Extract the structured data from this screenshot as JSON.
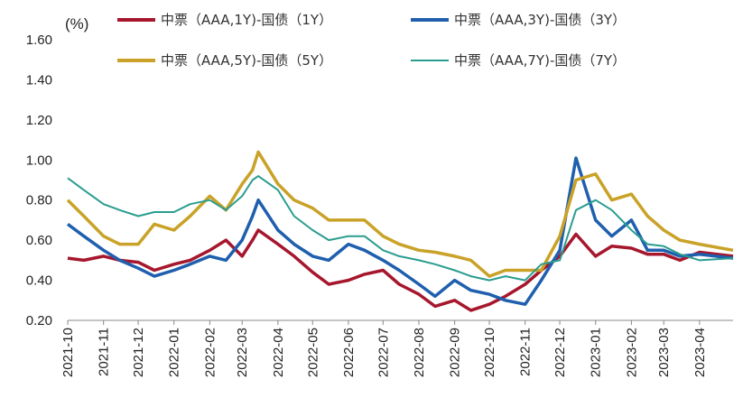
{
  "chart_data": {
    "type": "line",
    "unit_label": "(%)",
    "title": "",
    "xlabel": "",
    "ylabel": "",
    "ylim": [
      0.2,
      1.6
    ],
    "yticks": [
      "0.20",
      "0.40",
      "0.60",
      "0.80",
      "1.00",
      "1.20",
      "1.40",
      "1.60"
    ],
    "xlim": [
      "2021-10",
      "2023-04-30"
    ],
    "xticks": [
      "2021-10",
      "2021-11",
      "2021-12",
      "2022-01",
      "2022-02",
      "2022-03",
      "2022-04",
      "2022-05",
      "2022-06",
      "2022-07",
      "2022-08",
      "2022-09",
      "2022-10",
      "2022-11",
      "2022-12",
      "2023-01",
      "2023-02",
      "2023-03",
      "2023-04"
    ],
    "legend_position": "top",
    "grid": false,
    "series": [
      {
        "name": "中票（AAA,1Y)-国债（1Y）",
        "color": "#A6172D",
        "points": [
          [
            "2021-10-01",
            0.51
          ],
          [
            "2021-10-15",
            0.5
          ],
          [
            "2021-11-01",
            0.52
          ],
          [
            "2021-11-15",
            0.5
          ],
          [
            "2021-12-01",
            0.49
          ],
          [
            "2021-12-15",
            0.45
          ],
          [
            "2022-01-01",
            0.48
          ],
          [
            "2022-01-15",
            0.5
          ],
          [
            "2022-02-01",
            0.55
          ],
          [
            "2022-02-15",
            0.6
          ],
          [
            "2022-03-01",
            0.52
          ],
          [
            "2022-03-10",
            0.6
          ],
          [
            "2022-03-15",
            0.65
          ],
          [
            "2022-04-01",
            0.58
          ],
          [
            "2022-04-15",
            0.52
          ],
          [
            "2022-05-01",
            0.44
          ],
          [
            "2022-05-15",
            0.38
          ],
          [
            "2022-06-01",
            0.4
          ],
          [
            "2022-06-15",
            0.43
          ],
          [
            "2022-07-01",
            0.45
          ],
          [
            "2022-07-15",
            0.38
          ],
          [
            "2022-08-01",
            0.33
          ],
          [
            "2022-08-15",
            0.27
          ],
          [
            "2022-09-01",
            0.3
          ],
          [
            "2022-09-15",
            0.25
          ],
          [
            "2022-10-01",
            0.28
          ],
          [
            "2022-10-15",
            0.32
          ],
          [
            "2022-11-01",
            0.38
          ],
          [
            "2022-11-15",
            0.45
          ],
          [
            "2022-12-01",
            0.52
          ],
          [
            "2022-12-15",
            0.63
          ],
          [
            "2023-01-01",
            0.52
          ],
          [
            "2023-01-15",
            0.57
          ],
          [
            "2023-02-01",
            0.56
          ],
          [
            "2023-02-15",
            0.53
          ],
          [
            "2023-03-01",
            0.53
          ],
          [
            "2023-03-15",
            0.5
          ],
          [
            "2023-04-01",
            0.54
          ],
          [
            "2023-04-30",
            0.52
          ]
        ]
      },
      {
        "name": "中票（AAA,3Y)-国债（3Y）",
        "color": "#1F5FAE",
        "points": [
          [
            "2021-10-01",
            0.68
          ],
          [
            "2021-10-15",
            0.62
          ],
          [
            "2021-11-01",
            0.55
          ],
          [
            "2021-11-15",
            0.5
          ],
          [
            "2021-12-01",
            0.46
          ],
          [
            "2021-12-15",
            0.42
          ],
          [
            "2022-01-01",
            0.45
          ],
          [
            "2022-01-15",
            0.48
          ],
          [
            "2022-02-01",
            0.52
          ],
          [
            "2022-02-15",
            0.5
          ],
          [
            "2022-03-01",
            0.6
          ],
          [
            "2022-03-10",
            0.72
          ],
          [
            "2022-03-15",
            0.8
          ],
          [
            "2022-04-01",
            0.65
          ],
          [
            "2022-04-15",
            0.58
          ],
          [
            "2022-05-01",
            0.52
          ],
          [
            "2022-05-15",
            0.5
          ],
          [
            "2022-06-01",
            0.58
          ],
          [
            "2022-06-15",
            0.55
          ],
          [
            "2022-07-01",
            0.5
          ],
          [
            "2022-07-15",
            0.45
          ],
          [
            "2022-08-01",
            0.38
          ],
          [
            "2022-08-15",
            0.32
          ],
          [
            "2022-09-01",
            0.4
          ],
          [
            "2022-09-15",
            0.35
          ],
          [
            "2022-10-01",
            0.33
          ],
          [
            "2022-10-15",
            0.3
          ],
          [
            "2022-11-01",
            0.28
          ],
          [
            "2022-11-15",
            0.4
          ],
          [
            "2022-12-01",
            0.55
          ],
          [
            "2022-12-15",
            1.01
          ],
          [
            "2023-01-01",
            0.7
          ],
          [
            "2023-01-15",
            0.62
          ],
          [
            "2023-02-01",
            0.7
          ],
          [
            "2023-02-15",
            0.55
          ],
          [
            "2023-03-01",
            0.55
          ],
          [
            "2023-03-15",
            0.52
          ],
          [
            "2023-04-01",
            0.53
          ],
          [
            "2023-04-30",
            0.51
          ]
        ]
      },
      {
        "name": "中票（AAA,5Y)-国债（5Y）",
        "color": "#C9A227",
        "points": [
          [
            "2021-10-01",
            0.8
          ],
          [
            "2021-10-15",
            0.72
          ],
          [
            "2021-11-01",
            0.62
          ],
          [
            "2021-11-15",
            0.58
          ],
          [
            "2021-12-01",
            0.58
          ],
          [
            "2021-12-15",
            0.68
          ],
          [
            "2022-01-01",
            0.65
          ],
          [
            "2022-01-15",
            0.72
          ],
          [
            "2022-02-01",
            0.82
          ],
          [
            "2022-02-15",
            0.75
          ],
          [
            "2022-03-01",
            0.88
          ],
          [
            "2022-03-10",
            0.95
          ],
          [
            "2022-03-15",
            1.04
          ],
          [
            "2022-04-01",
            0.88
          ],
          [
            "2022-04-15",
            0.8
          ],
          [
            "2022-05-01",
            0.76
          ],
          [
            "2022-05-15",
            0.7
          ],
          [
            "2022-06-01",
            0.7
          ],
          [
            "2022-06-15",
            0.7
          ],
          [
            "2022-07-01",
            0.62
          ],
          [
            "2022-07-15",
            0.58
          ],
          [
            "2022-08-01",
            0.55
          ],
          [
            "2022-08-15",
            0.54
          ],
          [
            "2022-09-01",
            0.52
          ],
          [
            "2022-09-15",
            0.5
          ],
          [
            "2022-10-01",
            0.42
          ],
          [
            "2022-10-15",
            0.45
          ],
          [
            "2022-11-01",
            0.45
          ],
          [
            "2022-11-15",
            0.45
          ],
          [
            "2022-12-01",
            0.62
          ],
          [
            "2022-12-15",
            0.9
          ],
          [
            "2023-01-01",
            0.93
          ],
          [
            "2023-01-15",
            0.8
          ],
          [
            "2023-02-01",
            0.83
          ],
          [
            "2023-02-15",
            0.72
          ],
          [
            "2023-03-01",
            0.65
          ],
          [
            "2023-03-15",
            0.6
          ],
          [
            "2023-04-01",
            0.58
          ],
          [
            "2023-04-30",
            0.55
          ]
        ]
      },
      {
        "name": "中票（AAA,7Y)-国债（7Y）",
        "color": "#2A9D8F",
        "points": [
          [
            "2021-10-01",
            0.91
          ],
          [
            "2021-10-15",
            0.85
          ],
          [
            "2021-11-01",
            0.78
          ],
          [
            "2021-11-15",
            0.75
          ],
          [
            "2021-12-01",
            0.72
          ],
          [
            "2021-12-15",
            0.74
          ],
          [
            "2022-01-01",
            0.74
          ],
          [
            "2022-01-15",
            0.78
          ],
          [
            "2022-02-01",
            0.8
          ],
          [
            "2022-02-15",
            0.75
          ],
          [
            "2022-03-01",
            0.82
          ],
          [
            "2022-03-10",
            0.9
          ],
          [
            "2022-03-15",
            0.92
          ],
          [
            "2022-04-01",
            0.85
          ],
          [
            "2022-04-15",
            0.72
          ],
          [
            "2022-05-01",
            0.65
          ],
          [
            "2022-05-15",
            0.6
          ],
          [
            "2022-06-01",
            0.62
          ],
          [
            "2022-06-15",
            0.62
          ],
          [
            "2022-07-01",
            0.55
          ],
          [
            "2022-07-15",
            0.52
          ],
          [
            "2022-08-01",
            0.5
          ],
          [
            "2022-08-15",
            0.48
          ],
          [
            "2022-09-01",
            0.45
          ],
          [
            "2022-09-15",
            0.42
          ],
          [
            "2022-10-01",
            0.4
          ],
          [
            "2022-10-15",
            0.42
          ],
          [
            "2022-11-01",
            0.4
          ],
          [
            "2022-11-15",
            0.48
          ],
          [
            "2022-12-01",
            0.5
          ],
          [
            "2022-12-15",
            0.75
          ],
          [
            "2023-01-01",
            0.8
          ],
          [
            "2023-01-15",
            0.75
          ],
          [
            "2023-02-01",
            0.65
          ],
          [
            "2023-02-15",
            0.58
          ],
          [
            "2023-03-01",
            0.57
          ],
          [
            "2023-03-15",
            0.53
          ],
          [
            "2023-04-01",
            0.5
          ],
          [
            "2023-04-30",
            0.51
          ]
        ]
      }
    ]
  }
}
